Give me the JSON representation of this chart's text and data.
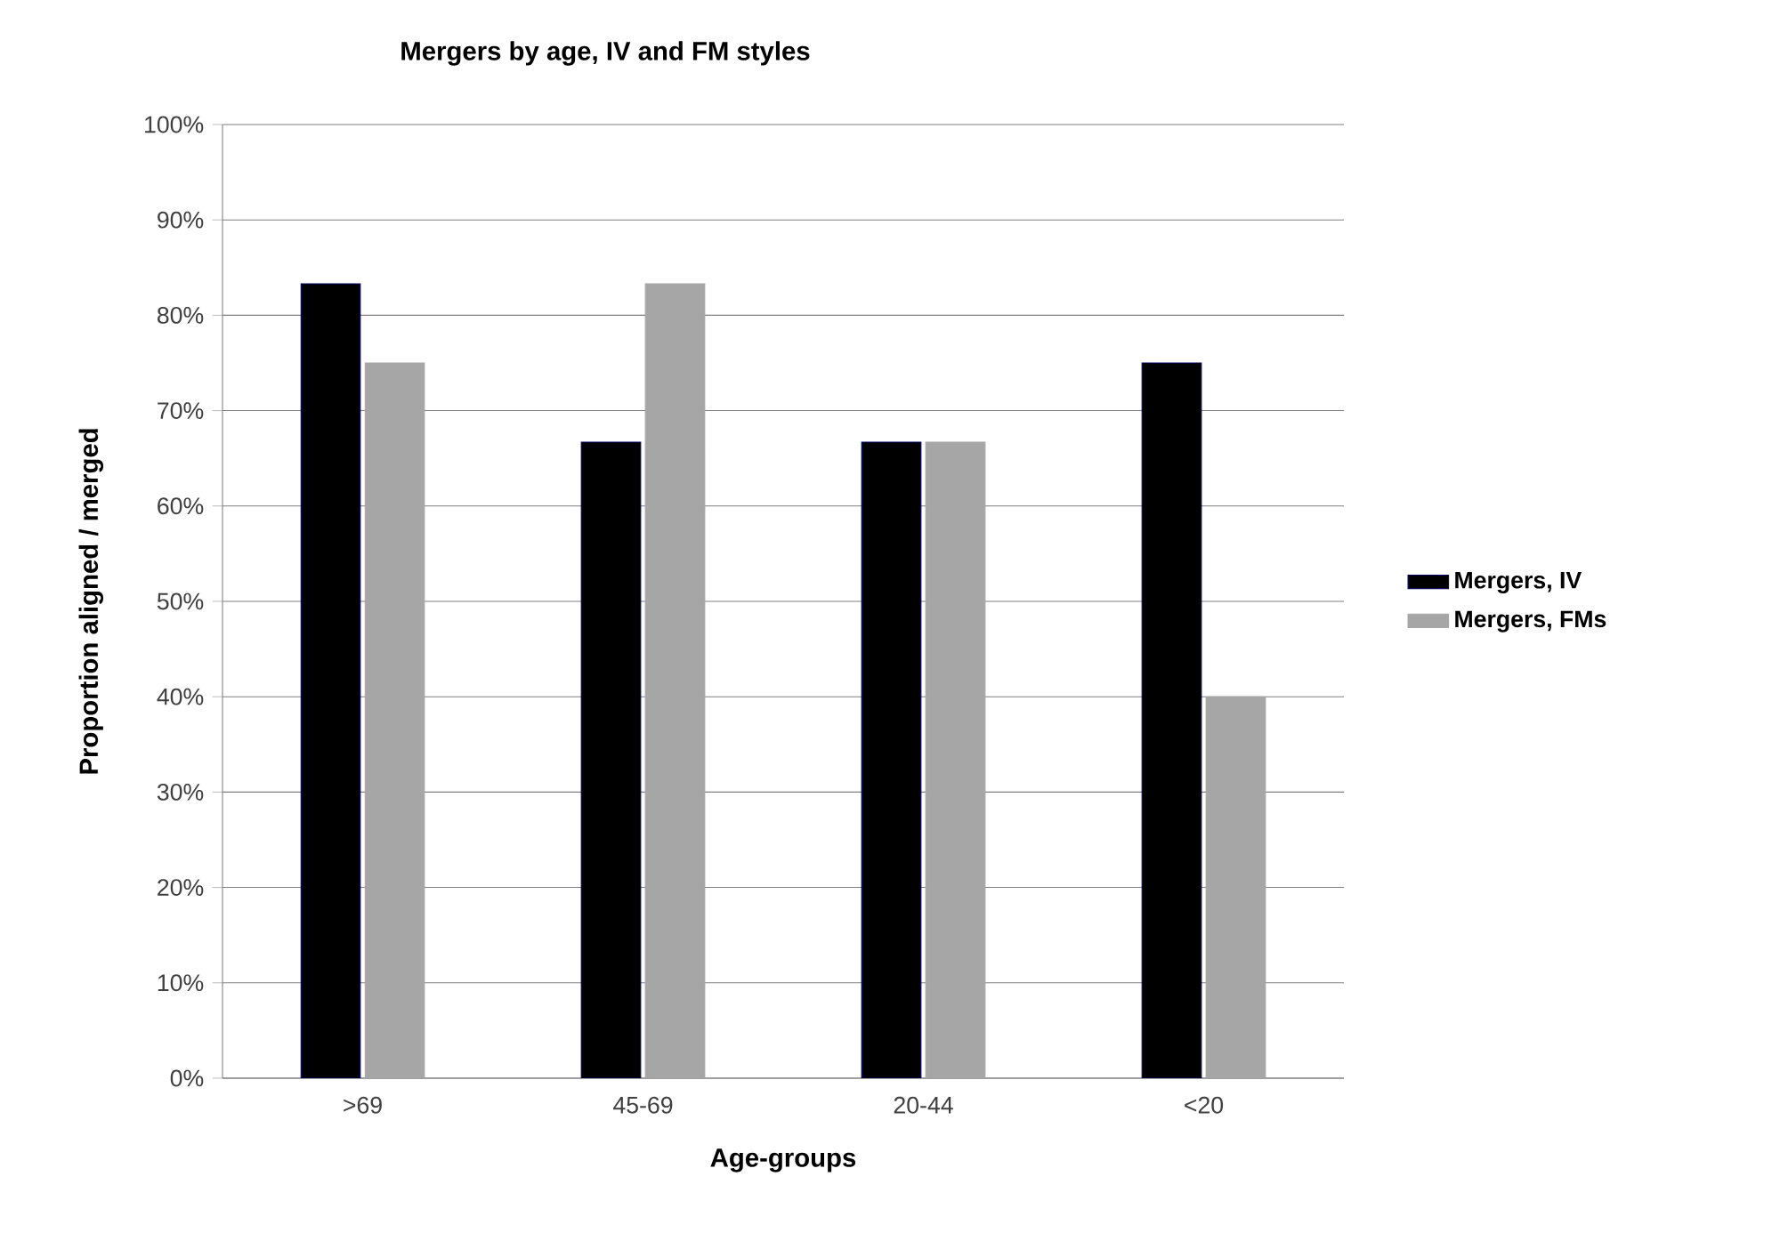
{
  "chart_data": {
    "type": "bar",
    "title": "Mergers by age, IV and FM styles",
    "xlabel": "Age-groups",
    "ylabel": "Proportion aligned / merged",
    "categories": [
      ">69",
      "45-69",
      "20-44",
      "<20"
    ],
    "series": [
      {
        "name": "Mergers, IV",
        "color": "#000000",
        "values": [
          83.3,
          66.7,
          66.7,
          75
        ]
      },
      {
        "name": "Mergers, FMs",
        "color": "#a6a6a6",
        "values": [
          75,
          83.3,
          66.7,
          40
        ]
      }
    ],
    "ylim": [
      0,
      100
    ],
    "yticks": [
      {
        "value": 0,
        "label": "0%"
      },
      {
        "value": 10,
        "label": "10%"
      },
      {
        "value": 20,
        "label": "20%"
      },
      {
        "value": 30,
        "label": "30%"
      },
      {
        "value": 40,
        "label": "40%"
      },
      {
        "value": 50,
        "label": "50%"
      },
      {
        "value": 60,
        "label": "60%"
      },
      {
        "value": 70,
        "label": "70%"
      },
      {
        "value": 80,
        "label": "80%"
      },
      {
        "value": 90,
        "label": "90%"
      },
      {
        "value": 100,
        "label": "100%"
      }
    ],
    "grid": "y",
    "legend": "right"
  }
}
